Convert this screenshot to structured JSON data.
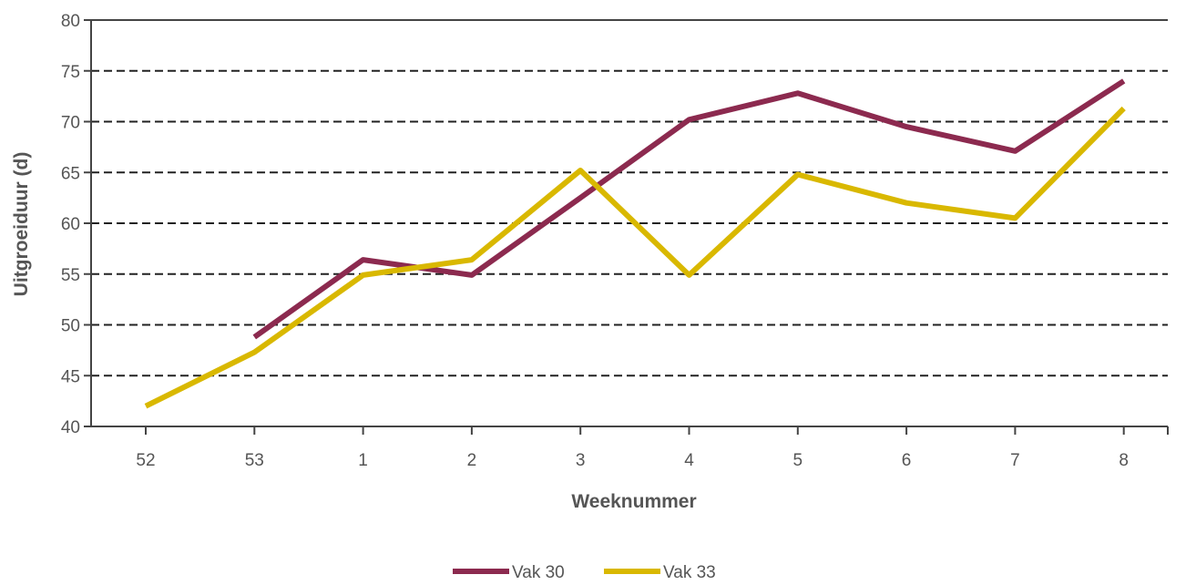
{
  "chart_data": {
    "type": "line",
    "title": "",
    "xlabel": "Weeknummer",
    "ylabel": "Uitgroeiduur (d)",
    "categories": [
      "52",
      "53",
      "1",
      "2",
      "3",
      "4",
      "5",
      "6",
      "7",
      "8"
    ],
    "ylim": [
      40,
      80
    ],
    "yticks": [
      40,
      45,
      50,
      55,
      60,
      65,
      70,
      75,
      80
    ],
    "grid": "horizontal dashed",
    "legend_position": "bottom",
    "series": [
      {
        "name": "Vak 30",
        "color": "#8c2a4f",
        "values": [
          null,
          48.8,
          56.4,
          54.9,
          62.5,
          70.2,
          72.8,
          69.5,
          67.1,
          74.0
        ]
      },
      {
        "name": "Vak 33",
        "color": "#d9b800",
        "values": [
          42.0,
          47.3,
          54.9,
          56.4,
          65.2,
          54.9,
          64.8,
          62.0,
          60.5,
          71.3
        ]
      }
    ]
  }
}
